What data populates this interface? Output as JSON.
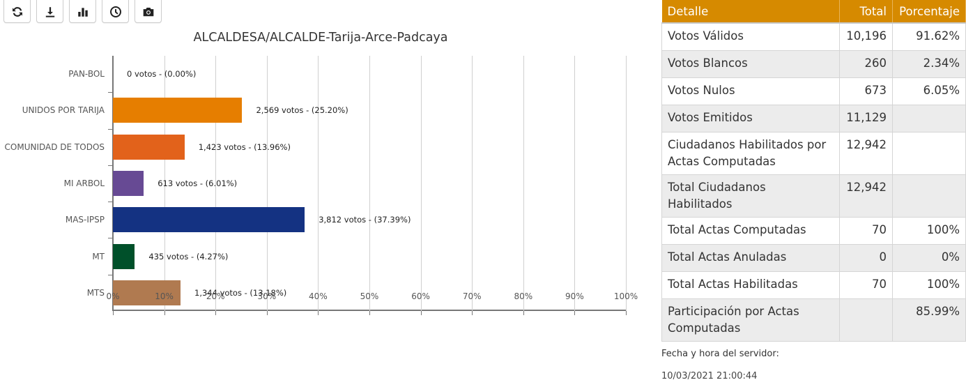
{
  "toolbar": {
    "buttons": [
      {
        "name": "refresh-icon",
        "title": "Actualizar"
      },
      {
        "name": "download-icon",
        "title": "Descargar"
      },
      {
        "name": "bar-chart-icon",
        "title": "Gráfico"
      },
      {
        "name": "clock-icon",
        "title": "Historial"
      },
      {
        "name": "camera-icon",
        "title": "Captura"
      }
    ]
  },
  "chart_data": {
    "type": "bar",
    "orientation": "horizontal",
    "title": "ALCALDESA/ALCALDE-Tarija-Arce-Padcaya",
    "xlabel": "",
    "ylabel": "",
    "xlim": [
      0,
      100
    ],
    "x_ticks": [
      "0%",
      "10%",
      "20%",
      "30%",
      "40%",
      "50%",
      "60%",
      "70%",
      "80%",
      "90%",
      "100%"
    ],
    "grid": true,
    "categories": [
      "PAN-BOL",
      "UNIDOS POR TARIJA",
      "COMUNIDAD DE TODOS",
      "MI ARBOL",
      "MAS-IPSP",
      "MT",
      "MTS"
    ],
    "votes": [
      0,
      2569,
      1423,
      613,
      3812,
      435,
      1344
    ],
    "values": [
      0.0,
      25.2,
      13.96,
      6.01,
      37.39,
      4.27,
      13.18
    ],
    "colors": [
      "#e67e00",
      "#e67e00",
      "#e2621b",
      "#674a94",
      "#143282",
      "#00502a",
      "#b07a50"
    ],
    "data_labels": [
      "0 votos - (0.00%)",
      "2,569 votos - (25.20%)",
      "1,423 votos - (13.96%)",
      "613 votos - (6.01%)",
      "3,812 votos - (37.39%)",
      "435 votos - (4.27%)",
      "1,344 votos - (13.18%)"
    ]
  },
  "summary": {
    "headers": {
      "detail": "Detalle",
      "total": "Total",
      "percent": "Porcentaje"
    },
    "rows": [
      {
        "detail": "Votos Válidos",
        "total": "10,196",
        "percent": "91.62%"
      },
      {
        "detail": "Votos Blancos",
        "total": "260",
        "percent": "2.34%"
      },
      {
        "detail": "Votos Nulos",
        "total": "673",
        "percent": "6.05%"
      },
      {
        "detail": "Votos Emitidos",
        "total": "11,129",
        "percent": ""
      },
      {
        "detail": "Ciudadanos Habilitados por Actas Computadas",
        "total": "12,942",
        "percent": ""
      },
      {
        "detail": "Total Ciudadanos Habilitados",
        "total": "12,942",
        "percent": ""
      },
      {
        "detail": "Total Actas Computadas",
        "total": "70",
        "percent": "100%"
      },
      {
        "detail": "Total Actas Anuladas",
        "total": "0",
        "percent": "0%"
      },
      {
        "detail": "Total Actas Habilitadas",
        "total": "70",
        "percent": "100%"
      },
      {
        "detail": "Participación por Actas Computadas",
        "total": "",
        "percent": "85.99%"
      }
    ]
  },
  "server": {
    "label": "Fecha y hora del servidor:",
    "datetime": "10/03/2021 21:00:44"
  }
}
